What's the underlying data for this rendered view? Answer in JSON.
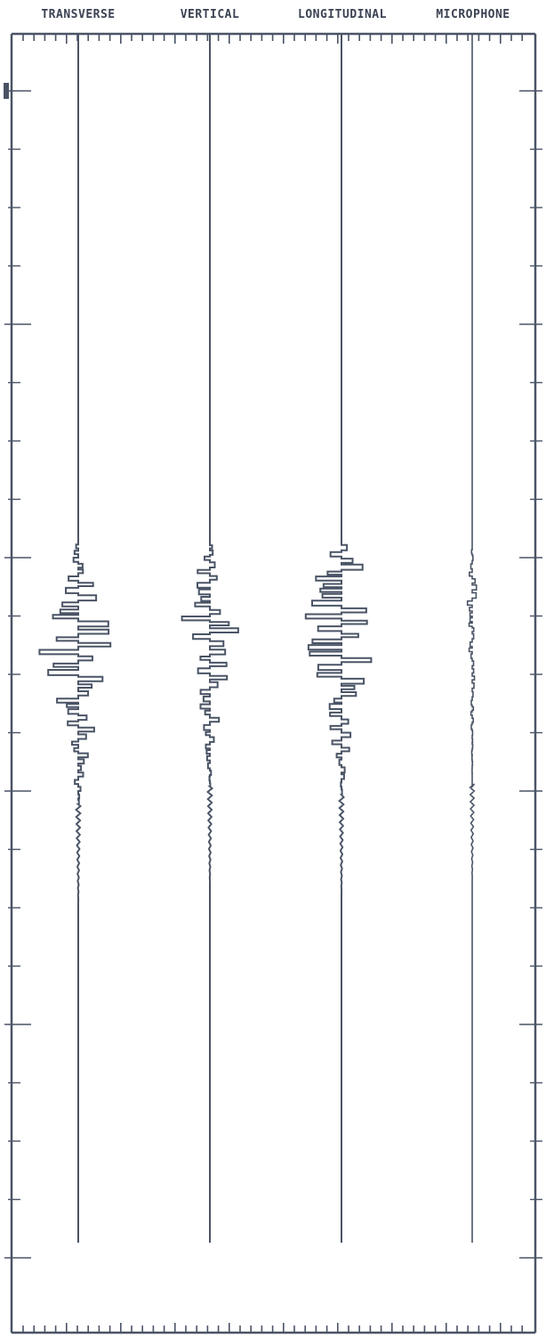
{
  "chart_data": {
    "type": "line",
    "channels": [
      {
        "name": "TRANSVERSE"
      },
      {
        "name": "VERTICAL"
      },
      {
        "name": "LONGITUDINAL"
      },
      {
        "name": "MICROPHONE"
      }
    ],
    "grid": false,
    "colors": {
      "trace": "#4a5466",
      "frame": "#4a5466",
      "header_text": "#3b4252",
      "background": "#ffffff"
    }
  }
}
